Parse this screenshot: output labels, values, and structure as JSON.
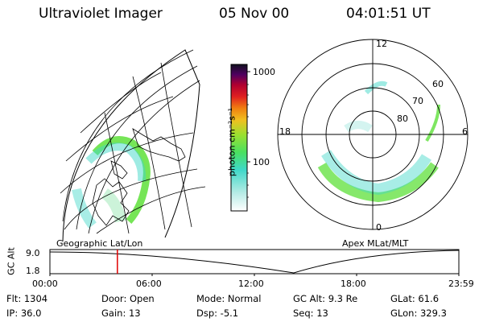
{
  "header": {
    "instrument": "Ultraviolet Imager",
    "date": "05 Nov 00",
    "time": "04:01:51 UT"
  },
  "colorbar": {
    "unit_label": "photon cm⁻²s⁻¹",
    "ticks": [
      "1000",
      "100"
    ],
    "scale": "log"
  },
  "left_panel": {
    "label": "Geographic Lat/Lon"
  },
  "right_panel": {
    "label": "Apex MLat/MLT",
    "mlt_labels": [
      "12",
      "18",
      "6",
      "0"
    ],
    "mlat_labels": [
      "60",
      "70",
      "80"
    ]
  },
  "altitude_plot": {
    "ylabel": "GC Alt",
    "y_ticks": [
      "9.0",
      "1.8"
    ],
    "x_ticks": [
      "00:00",
      "06:00",
      "12:00",
      "18:00",
      "23:59"
    ],
    "current_time_fraction": 0.165
  },
  "status": {
    "flt": "Flt: 1304",
    "door": "Door: Open",
    "mode": "Mode: Normal",
    "gc_alt": "GC Alt: 9.3 Re",
    "glat": "GLat:  61.6",
    "ip": "IP: 36.0",
    "gain": "Gain: 13",
    "dsp": "Dsp:    -5.1",
    "seq": "Seq: 13",
    "glon": "GLon: 329.3"
  },
  "colors": {
    "auroral_green": "#5ee03a",
    "auroral_cyan": "#3fd8c8",
    "marker": "#e00000"
  }
}
